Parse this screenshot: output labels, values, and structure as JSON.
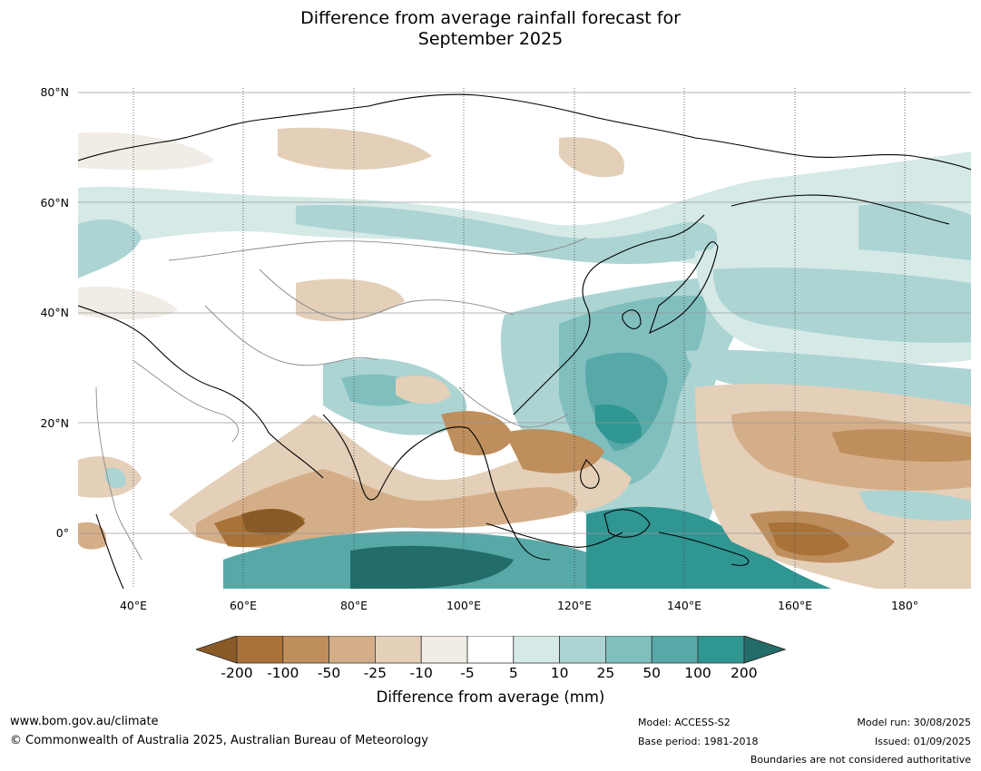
{
  "title_line1": "Difference from average rainfall forecast for",
  "title_line2": "September 2025",
  "map": {
    "lon_range": [
      30,
      192
    ],
    "lat_range": [
      -10,
      81
    ],
    "lat_labels": [
      "80°N",
      "60°N",
      "40°N",
      "20°N",
      "0°"
    ],
    "lon_labels": [
      "40°E",
      "60°E",
      "80°E",
      "100°E",
      "120°E",
      "140°E",
      "160°E",
      "180°"
    ]
  },
  "colorbar": {
    "ticks": [
      "-200",
      "-100",
      "-50",
      "-25",
      "-10",
      "-5",
      "5",
      "10",
      "25",
      "50",
      "100",
      "200"
    ],
    "colors": [
      "#a87238",
      "#be8e5c",
      "#d4ae88",
      "#e4cfb9",
      "#f1ece5",
      "#ffffff",
      "#d5e9e7",
      "#acd4d3",
      "#80bfbe",
      "#57a9a8",
      "#2f9692"
    ],
    "under_color": "#8a5a26",
    "over_color": "#226d6a",
    "label": "Difference from average (mm)"
  },
  "footer": {
    "website": "www.bom.gov.au/climate",
    "copyright": "© Commonwealth of Australia 2025, Australian Bureau of Meteorology",
    "model": "Model: ACCESS-S2",
    "base_period": "Base period: 1981-2018",
    "model_run": "Model run: 30/08/2025",
    "issued": "Issued: 01/09/2025",
    "boundaries_note": "Boundaries are not considered authoritative"
  }
}
